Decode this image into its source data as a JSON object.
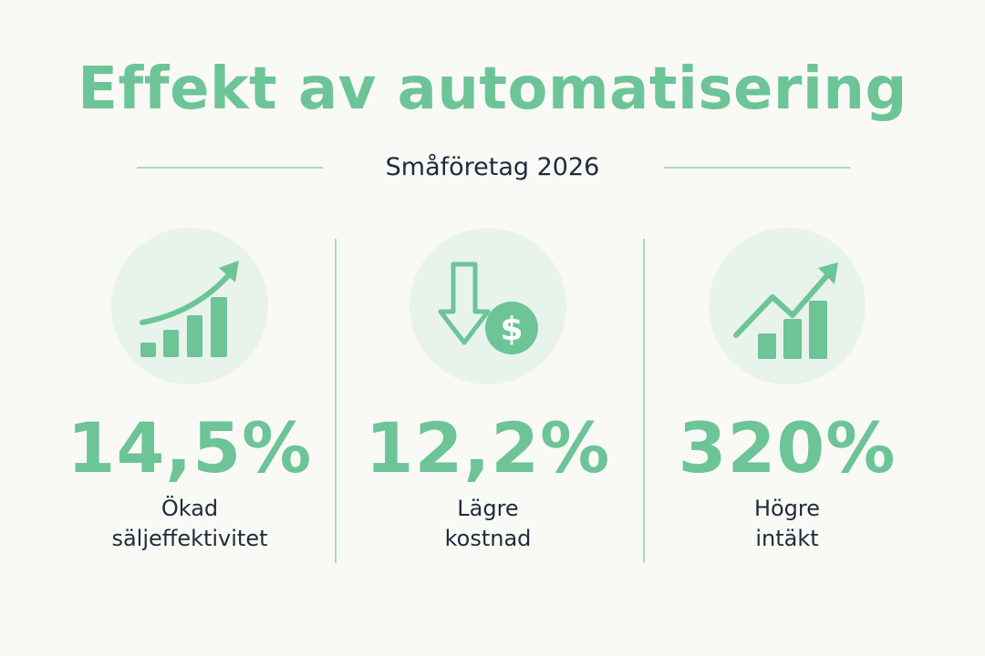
{
  "colors": {
    "accent": "#6cc497",
    "circle": "#e8f3ec",
    "rule": "#86cfa6",
    "text": "#1e2b3a",
    "background": "#f9f9f6"
  },
  "title": "Effekt av automatisering",
  "subtitle": "Småföretag 2026",
  "stats": [
    {
      "icon": "bar-chart-trend-up-icon",
      "value": "14,5%",
      "label_lines": [
        "Ökad",
        "säljeffektivitet"
      ]
    },
    {
      "icon": "arrow-down-dollar-icon",
      "value": "12,2%",
      "label_lines": [
        "Lägre",
        "kostnad"
      ]
    },
    {
      "icon": "bar-chart-growth-line-icon",
      "value": "320%",
      "label_lines": [
        "Högre",
        "intäkt"
      ]
    }
  ]
}
